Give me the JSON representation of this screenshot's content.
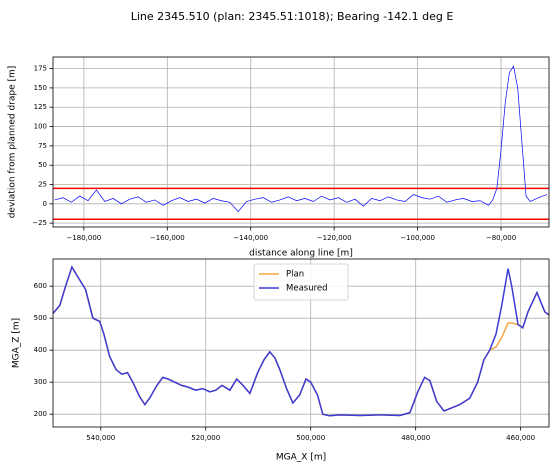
{
  "title": "Line 2345.510 (plan: 2345.51:1018); Bearing -142.1 deg E",
  "chart_data": [
    {
      "type": "line",
      "xlabel": "distance along line [m]",
      "ylabel": "deviation from planned drape [m]",
      "xlim": [
        -187400,
        -68500
      ],
      "ylim": [
        -30,
        190
      ],
      "grid": true,
      "xticks": [
        {
          "value": -180000,
          "label": "−180,000"
        },
        {
          "value": -160000,
          "label": "−160,000"
        },
        {
          "value": -140000,
          "label": "−140,000"
        },
        {
          "value": -120000,
          "label": "−120,000"
        },
        {
          "value": -100000,
          "label": "−100,000"
        },
        {
          "value": -80000,
          "label": "−80,000"
        }
      ],
      "yticks": [
        {
          "value": -25,
          "label": "−25"
        },
        0,
        25,
        50,
        75,
        100,
        125,
        150,
        175
      ],
      "color": "#0000ff",
      "x": [
        -187000,
        -185000,
        -183000,
        -181000,
        -179000,
        -177000,
        -175000,
        -173000,
        -171000,
        -169000,
        -167000,
        -165000,
        -163000,
        -161000,
        -159000,
        -157000,
        -155000,
        -153000,
        -151000,
        -149000,
        -147000,
        -145000,
        -143000,
        -141000,
        -139000,
        -137000,
        -135000,
        -133000,
        -131000,
        -129000,
        -127000,
        -125000,
        -123000,
        -121000,
        -119000,
        -117000,
        -115000,
        -113000,
        -111000,
        -109000,
        -107000,
        -105000,
        -103000,
        -101000,
        -99000,
        -97000,
        -95000,
        -93000,
        -91000,
        -89000,
        -87000,
        -85000,
        -83000,
        -82000,
        -81000,
        -80000,
        -79000,
        -78000,
        -77000,
        -76000,
        -75000,
        -74000,
        -73000,
        -71000,
        -69000
      ],
      "values": [
        5,
        8,
        2,
        10,
        4,
        18,
        3,
        7,
        0,
        6,
        9,
        2,
        5,
        -2,
        4,
        8,
        3,
        6,
        1,
        7,
        4,
        2,
        -10,
        3,
        6,
        8,
        2,
        5,
        9,
        4,
        7,
        3,
        10,
        5,
        8,
        2,
        6,
        -3,
        7,
        4,
        9,
        5,
        3,
        12,
        8,
        6,
        10,
        2,
        5,
        7,
        3,
        4,
        -2,
        5,
        20,
        70,
        130,
        170,
        178,
        150,
        80,
        10,
        3,
        8,
        12
      ],
      "reference_lines": {
        "values": [
          20,
          -20
        ],
        "color": "#ff0000"
      }
    },
    {
      "type": "line",
      "xlabel": "MGA_X [m]",
      "ylabel": "MGA_Z [m]",
      "xlim": [
        549100,
        454600
      ],
      "ylim": [
        160,
        685
      ],
      "grid": true,
      "legend": "upper center",
      "xticks": [
        {
          "value": 540000,
          "label": "540,000"
        },
        {
          "value": 520000,
          "label": "520,000"
        },
        {
          "value": 500000,
          "label": "500,000"
        },
        {
          "value": 480000,
          "label": "480,000"
        },
        {
          "value": 460000,
          "label": "460,000"
        }
      ],
      "yticks": [
        200,
        300,
        400,
        500,
        600
      ],
      "x": [
        549100,
        547800,
        546700,
        545500,
        544400,
        542900,
        541500,
        540200,
        539400,
        538300,
        537100,
        536000,
        534900,
        533900,
        532600,
        531600,
        530700,
        529300,
        528200,
        527200,
        525900,
        524600,
        523400,
        521900,
        520600,
        519200,
        518100,
        516900,
        515400,
        514100,
        512900,
        511600,
        510100,
        508900,
        507800,
        506800,
        505900,
        504600,
        503400,
        502100,
        500900,
        500000,
        498700,
        497700,
        496400,
        494500,
        490600,
        486900,
        483000,
        481100,
        479600,
        478300,
        477300,
        476000,
        474600,
        473100,
        471600,
        469700,
        468200,
        467000,
        465900,
        464700,
        463600,
        462400,
        461700,
        460500,
        459600,
        458600,
        456900,
        455400,
        454600
      ],
      "series": [
        {
          "name": "Plan",
          "color": "#f5a742",
          "values": [
            515,
            540,
            600,
            660,
            630,
            590,
            500,
            490,
            450,
            380,
            340,
            325,
            330,
            300,
            255,
            230,
            250,
            290,
            315,
            310,
            300,
            290,
            285,
            275,
            280,
            270,
            275,
            290,
            275,
            310,
            290,
            265,
            330,
            370,
            395,
            375,
            340,
            280,
            235,
            260,
            310,
            300,
            260,
            200,
            195,
            198,
            196,
            198,
            196,
            205,
            270,
            315,
            305,
            240,
            210,
            220,
            230,
            250,
            300,
            370,
            400,
            410,
            440,
            485,
            485,
            480,
            470,
            520,
            580,
            520,
            510
          ]
        },
        {
          "name": "Measured",
          "color": "#3b3bd6",
          "values": [
            515,
            540,
            600,
            660,
            630,
            590,
            500,
            490,
            450,
            380,
            340,
            325,
            330,
            300,
            255,
            230,
            250,
            290,
            315,
            310,
            300,
            290,
            285,
            275,
            280,
            270,
            275,
            290,
            275,
            310,
            290,
            265,
            330,
            370,
            395,
            375,
            340,
            280,
            235,
            260,
            310,
            300,
            260,
            200,
            195,
            198,
            196,
            198,
            196,
            205,
            270,
            315,
            305,
            240,
            210,
            220,
            230,
            250,
            300,
            370,
            400,
            450,
            540,
            655,
            600,
            480,
            470,
            520,
            580,
            520,
            510
          ]
        }
      ]
    }
  ]
}
